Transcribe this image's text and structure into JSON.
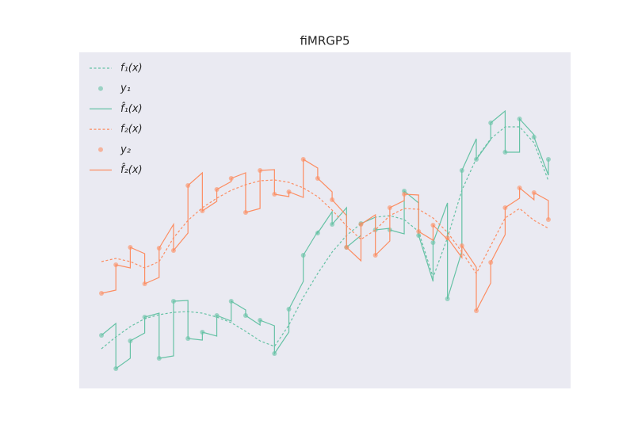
{
  "chart_data": {
    "type": "line",
    "title": "fiMRGP5",
    "xlim": [
      -1.54,
      32.54
    ],
    "ylim": [
      0,
      4.24
    ],
    "background": "#eaeaf2",
    "legend": "upper left",
    "series": [
      {
        "name": "f₁(x)",
        "color": "#66c2a5",
        "style": "dashed",
        "x": [
          0,
          1,
          2,
          3,
          4,
          5,
          6,
          7,
          8,
          9,
          10,
          11,
          12,
          13,
          14,
          15,
          16,
          17,
          18,
          19,
          20,
          21,
          22,
          23,
          24,
          25,
          26,
          27,
          28,
          29,
          30,
          31
        ],
        "values": [
          0.5,
          0.65,
          0.78,
          0.88,
          0.93,
          0.96,
          0.97,
          0.95,
          0.9,
          0.83,
          0.72,
          0.6,
          0.53,
          0.8,
          1.15,
          1.45,
          1.72,
          1.93,
          2.08,
          2.16,
          2.18,
          2.13,
          1.98,
          1.4,
          1.9,
          2.5,
          2.9,
          3.15,
          3.3,
          3.3,
          3.1,
          2.62
        ]
      },
      {
        "name": "y₁",
        "color": "#66c2a5",
        "style": "markers",
        "x": [
          0,
          1,
          2,
          3,
          4,
          5,
          6,
          7,
          8,
          9,
          10,
          11,
          12,
          13,
          14,
          15,
          16,
          17,
          18,
          19,
          20,
          21,
          22,
          23,
          24,
          25,
          26,
          27,
          28,
          29,
          30,
          31
        ],
        "values": [
          0.67,
          0.25,
          0.6,
          0.9,
          0.38,
          1.1,
          0.63,
          0.71,
          0.92,
          1.1,
          0.92,
          0.86,
          0.44,
          1.0,
          1.68,
          1.96,
          2.07,
          1.78,
          2.08,
          2.0,
          2.0,
          2.49,
          1.93,
          1.84,
          1.13,
          2.75,
          2.89,
          3.35,
          2.98,
          3.4,
          3.17,
          2.89
        ]
      },
      {
        "name": "f̂₁(x)",
        "color": "#66c2a5",
        "style": "solid",
        "x": [
          0,
          1,
          1,
          2,
          2,
          3,
          3,
          4,
          4,
          5,
          5,
          6,
          6,
          7,
          7,
          8,
          8,
          9,
          9,
          10,
          10,
          11,
          11,
          12,
          12,
          13,
          13,
          14,
          14,
          15,
          15,
          16,
          16,
          17,
          17,
          18,
          18,
          19,
          19,
          20,
          20,
          21,
          21,
          22,
          22,
          23,
          23,
          24,
          24,
          25,
          25,
          26,
          26,
          27,
          27,
          28,
          28,
          29,
          29,
          30,
          30,
          31,
          31
        ],
        "values": [
          0.67,
          0.82,
          0.25,
          0.38,
          0.6,
          0.7,
          0.9,
          0.95,
          0.38,
          0.41,
          1.1,
          1.11,
          0.63,
          0.61,
          0.71,
          0.66,
          0.92,
          0.85,
          1.1,
          0.99,
          0.92,
          0.8,
          0.86,
          0.79,
          0.44,
          0.71,
          1.0,
          1.35,
          1.68,
          1.98,
          1.96,
          2.23,
          2.07,
          2.28,
          1.78,
          1.93,
          2.08,
          2.16,
          2.0,
          2.02,
          2.0,
          1.95,
          2.49,
          2.34,
          1.93,
          1.35,
          1.84,
          2.34,
          1.13,
          1.73,
          2.75,
          3.15,
          2.89,
          3.14,
          3.35,
          3.5,
          2.98,
          2.98,
          3.4,
          3.2,
          3.17,
          2.69,
          2.89
        ]
      },
      {
        "name": "f₂(x)",
        "color": "#fc8d62",
        "style": "dashed",
        "x": [
          0,
          1,
          2,
          3,
          4,
          5,
          6,
          7,
          8,
          9,
          10,
          11,
          12,
          13,
          14,
          15,
          16,
          17,
          18,
          19,
          20,
          21,
          22,
          23,
          24,
          25,
          26,
          27,
          28,
          29,
          30,
          31
        ],
        "values": [
          1.6,
          1.64,
          1.6,
          1.52,
          1.6,
          1.9,
          2.12,
          2.28,
          2.4,
          2.5,
          2.57,
          2.62,
          2.63,
          2.6,
          2.53,
          2.42,
          2.25,
          2.05,
          1.88,
          2.0,
          2.18,
          2.27,
          2.26,
          2.15,
          1.97,
          1.72,
          1.45,
          1.8,
          2.15,
          2.27,
          2.12,
          2.02
        ]
      },
      {
        "name": "y₂",
        "color": "#fc8d62",
        "style": "markers",
        "x": [
          0,
          1,
          2,
          3,
          4,
          5,
          6,
          7,
          8,
          9,
          10,
          11,
          12,
          13,
          14,
          15,
          16,
          17,
          18,
          19,
          20,
          21,
          22,
          23,
          24,
          25,
          26,
          27,
          28,
          29,
          30,
          31
        ],
        "values": [
          1.2,
          1.56,
          1.78,
          1.32,
          1.77,
          1.74,
          2.56,
          2.24,
          2.51,
          2.65,
          2.22,
          2.75,
          2.45,
          2.48,
          2.89,
          2.65,
          2.38,
          1.78,
          2.07,
          1.68,
          2.28,
          2.45,
          1.98,
          2.06,
          1.9,
          1.8,
          0.98,
          1.59,
          2.28,
          2.53,
          2.47,
          2.13
        ]
      },
      {
        "name": "f̂₂(x)",
        "color": "#fc8d62",
        "style": "solid",
        "x": [
          0,
          1,
          1,
          2,
          2,
          3,
          3,
          4,
          4,
          5,
          5,
          6,
          6,
          7,
          7,
          8,
          8,
          9,
          9,
          10,
          10,
          11,
          11,
          12,
          12,
          13,
          13,
          14,
          14,
          15,
          15,
          16,
          16,
          17,
          17,
          18,
          18,
          19,
          19,
          20,
          20,
          21,
          21,
          22,
          22,
          23,
          23,
          24,
          24,
          25,
          25,
          26,
          26,
          27,
          27,
          28,
          28,
          29,
          29,
          30,
          30,
          31,
          31
        ],
        "values": [
          1.2,
          1.24,
          1.56,
          1.52,
          1.78,
          1.7,
          1.32,
          1.4,
          1.77,
          2.07,
          1.74,
          1.96,
          2.56,
          2.72,
          2.24,
          2.36,
          2.51,
          2.61,
          2.65,
          2.72,
          2.22,
          2.27,
          2.75,
          2.76,
          2.45,
          2.42,
          2.48,
          2.41,
          2.89,
          2.78,
          2.65,
          2.48,
          2.38,
          2.18,
          1.78,
          1.61,
          2.07,
          2.19,
          1.68,
          1.86,
          2.28,
          2.37,
          2.45,
          2.44,
          1.98,
          1.87,
          2.06,
          1.88,
          1.9,
          1.65,
          1.8,
          1.53,
          0.98,
          1.33,
          1.59,
          1.94,
          2.28,
          2.4,
          2.53,
          2.38,
          2.47,
          2.37,
          2.13
        ]
      }
    ]
  }
}
